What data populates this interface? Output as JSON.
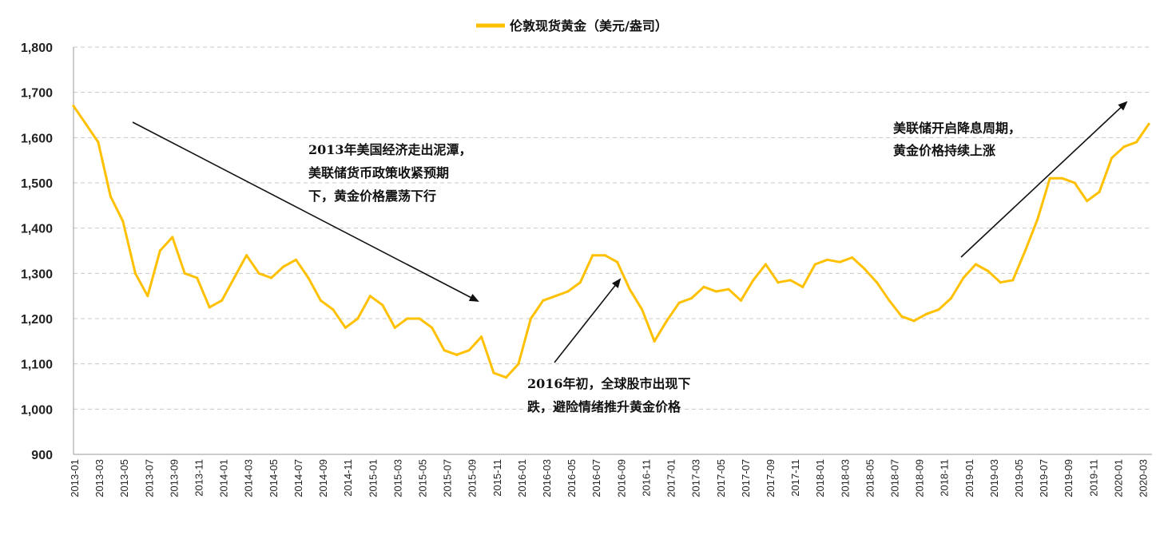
{
  "chart_data": {
    "type": "line",
    "title": "",
    "xlabel": "",
    "ylabel": "",
    "ylim": [
      900,
      1800
    ],
    "y_ticks": [
      "900",
      "1,000",
      "1,100",
      "1,200",
      "1,300",
      "1,400",
      "1,500",
      "1,600",
      "1,700",
      "1,800"
    ],
    "x_ticks": [
      "2013-01",
      "2013-03",
      "2013-05",
      "2013-07",
      "2013-09",
      "2013-11",
      "2014-01",
      "2014-03",
      "2014-05",
      "2014-07",
      "2014-09",
      "2014-11",
      "2015-01",
      "2015-03",
      "2015-05",
      "2015-07",
      "2015-09",
      "2015-11",
      "2016-01",
      "2016-03",
      "2016-05",
      "2016-07",
      "2016-09",
      "2016-11",
      "2017-01",
      "2017-03",
      "2017-05",
      "2017-07",
      "2017-09",
      "2017-11",
      "2018-01",
      "2018-03",
      "2018-05",
      "2018-07",
      "2018-09",
      "2018-11",
      "2019-01",
      "2019-03",
      "2019-05",
      "2019-07",
      "2019-09",
      "2019-11",
      "2020-01",
      "2020-03"
    ],
    "grid": true,
    "legend_position": "top-center",
    "series": [
      {
        "name": "伦敦现货黄金（美元/盎司）",
        "color": "#FFC000",
        "x": [
          "2013-01",
          "2013-02",
          "2013-03",
          "2013-04",
          "2013-05",
          "2013-06",
          "2013-07",
          "2013-08",
          "2013-09",
          "2013-10",
          "2013-11",
          "2013-12",
          "2014-01",
          "2014-02",
          "2014-03",
          "2014-04",
          "2014-05",
          "2014-06",
          "2014-07",
          "2014-08",
          "2014-09",
          "2014-10",
          "2014-11",
          "2014-12",
          "2015-01",
          "2015-02",
          "2015-03",
          "2015-04",
          "2015-05",
          "2015-06",
          "2015-07",
          "2015-08",
          "2015-09",
          "2015-10",
          "2015-11",
          "2015-12",
          "2016-01",
          "2016-02",
          "2016-03",
          "2016-04",
          "2016-05",
          "2016-06",
          "2016-07",
          "2016-08",
          "2016-09",
          "2016-10",
          "2016-11",
          "2016-12",
          "2017-01",
          "2017-02",
          "2017-03",
          "2017-04",
          "2017-05",
          "2017-06",
          "2017-07",
          "2017-08",
          "2017-09",
          "2017-10",
          "2017-11",
          "2017-12",
          "2018-01",
          "2018-02",
          "2018-03",
          "2018-04",
          "2018-05",
          "2018-06",
          "2018-07",
          "2018-08",
          "2018-09",
          "2018-10",
          "2018-11",
          "2018-12",
          "2019-01",
          "2019-02",
          "2019-03",
          "2019-04",
          "2019-05",
          "2019-06",
          "2019-07",
          "2019-08",
          "2019-09",
          "2019-10",
          "2019-11",
          "2019-12",
          "2020-01",
          "2020-02",
          "2020-03",
          "2020-04"
        ],
        "values": [
          1670,
          1630,
          1590,
          1470,
          1415,
          1300,
          1250,
          1350,
          1380,
          1300,
          1290,
          1225,
          1240,
          1290,
          1340,
          1300,
          1290,
          1315,
          1330,
          1290,
          1240,
          1220,
          1180,
          1200,
          1250,
          1230,
          1180,
          1200,
          1200,
          1180,
          1130,
          1120,
          1130,
          1160,
          1080,
          1070,
          1100,
          1200,
          1240,
          1250,
          1260,
          1280,
          1340,
          1340,
          1325,
          1265,
          1220,
          1150,
          1195,
          1235,
          1245,
          1270,
          1260,
          1265,
          1240,
          1285,
          1320,
          1280,
          1285,
          1270,
          1320,
          1330,
          1325,
          1335,
          1310,
          1280,
          1240,
          1205,
          1195,
          1210,
          1220,
          1245,
          1290,
          1320,
          1305,
          1280,
          1285,
          1350,
          1420,
          1510,
          1510,
          1500,
          1460,
          1480,
          1555,
          1580,
          1590,
          1630
        ]
      }
    ],
    "annotations": [
      {
        "id": "a1",
        "lines": [
          "2013年美国经济走出泥潭，",
          "美联储货币政策收紧预期",
          "下，黄金价格震荡下行"
        ]
      },
      {
        "id": "a2",
        "lines": [
          "2016年初，全球股市出现下",
          "跌，避险情绪推升黄金价格"
        ]
      },
      {
        "id": "a3",
        "lines": [
          "美联储开启降息周期，",
          "黄金价格持续上涨"
        ]
      }
    ]
  }
}
